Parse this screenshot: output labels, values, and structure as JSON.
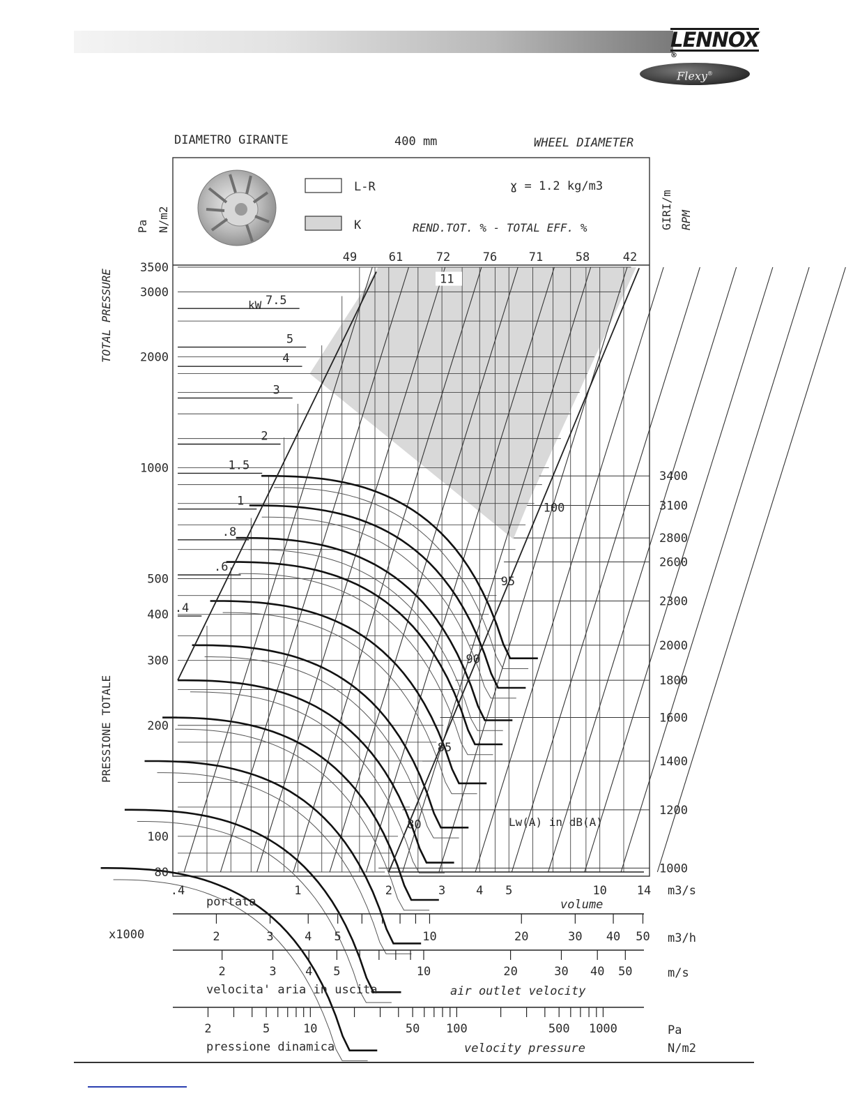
{
  "header": {
    "brand": "LENNOX",
    "brand_mark": "®",
    "product": "Flexy",
    "product_mark": "®"
  },
  "chart_data": {
    "type": "line",
    "chart_kind": "fan performance chart",
    "title_left": "DIAMETRO GIRANTE",
    "title_center": "400 mm",
    "title_right": "WHEEL DIAMETER",
    "legend": [
      {
        "label": "L-R",
        "fill": "#ffffff"
      },
      {
        "label": "K",
        "fill": "#d6d6d6"
      }
    ],
    "density_label": "ɣ = 1.2 kg/m3",
    "efficiency_label": "REND.TOT. % - TOTAL EFF. %",
    "efficiency_values": [
      "49",
      "61",
      "72",
      "76",
      "71",
      "58",
      "42"
    ],
    "y_unit_labels": [
      "Pa",
      "N/m2"
    ],
    "ylabel_en": "TOTAL PRESSURE",
    "ylabel_it": "PRESSIONE TOTALE",
    "y_scale": "log",
    "y_range": [
      80,
      3500
    ],
    "y_ticks": [
      {
        "label": "3500",
        "value": 3500
      },
      {
        "label": "3000",
        "value": 3000
      },
      {
        "label": "2000",
        "value": 2000
      },
      {
        "label": "1000",
        "value": 1000
      },
      {
        "label": "500",
        "value": 500
      },
      {
        "label": "400",
        "value": 400
      },
      {
        "label": "300",
        "value": 300
      },
      {
        "label": "200",
        "value": 200
      },
      {
        "label": "100",
        "value": 100
      },
      {
        "label": "80",
        "value": 80
      }
    ],
    "rpm_axis_labels": [
      "GIRI/m",
      "RPM"
    ],
    "rpm_ticks": [
      {
        "label": "3400",
        "pressure": 950
      },
      {
        "label": "3100",
        "pressure": 790
      },
      {
        "label": "2800",
        "pressure": 645
      },
      {
        "label": "2600",
        "pressure": 555
      },
      {
        "label": "2300",
        "pressure": 435
      },
      {
        "label": "2000",
        "pressure": 330
      },
      {
        "label": "1800",
        "pressure": 265
      },
      {
        "label": "1600",
        "pressure": 210
      },
      {
        "label": "1400",
        "pressure": 160
      },
      {
        "label": "1200",
        "pressure": 118
      },
      {
        "label": "1000",
        "pressure": 82
      }
    ],
    "power_label": "kW",
    "power_ticks": [
      {
        "label": "11",
        "volume": 2.95,
        "pressure": 3200
      },
      {
        "label": "7.5",
        "volume": 0.97,
        "pressure": 2800
      },
      {
        "label": "5",
        "volume": 1.02,
        "pressure": 2200
      },
      {
        "label": "4",
        "volume": 0.99,
        "pressure": 1950
      },
      {
        "label": "3",
        "volume": 0.92,
        "pressure": 1600
      },
      {
        "label": "2",
        "volume": 0.84,
        "pressure": 1200
      },
      {
        "label": "1.5",
        "volume": 0.73,
        "pressure": 1000
      },
      {
        "label": "1",
        "volume": 0.7,
        "pressure": 800
      },
      {
        "label": ".8",
        "volume": 0.66,
        "pressure": 660
      },
      {
        "label": ".6",
        "volume": 0.62,
        "pressure": 530
      },
      {
        "label": ".4",
        "volume": 0.46,
        "pressure": 410
      }
    ],
    "sound_label": "Lw(A)  in dB(A)",
    "sound_ticks": [
      {
        "label": "100",
        "volume": 6.5,
        "pressure": 760
      },
      {
        "label": "95",
        "volume": 4.7,
        "pressure": 480
      },
      {
        "label": "90",
        "volume": 3.6,
        "pressure": 295
      },
      {
        "label": "85",
        "volume": 2.9,
        "pressure": 170
      },
      {
        "label": "80",
        "volume": 2.3,
        "pressure": 105
      }
    ],
    "x_scale": "log",
    "x_range": [
      0.4,
      14
    ],
    "x_ticks": [
      {
        "label": ".4",
        "value": 0.4
      },
      {
        "label": "1",
        "value": 1
      },
      {
        "label": "2",
        "value": 2
      },
      {
        "label": "3",
        "value": 3
      },
      {
        "label": "4",
        "value": 4
      },
      {
        "label": "5",
        "value": 5
      },
      {
        "label": "10",
        "value": 10
      },
      {
        "label": "14",
        "value": 14
      }
    ],
    "xlabel_it": "portata",
    "xlabel_en": "volume",
    "xunit": "m3/s",
    "m3h_multiplier": "x1000",
    "m3h_unit": "m3/h",
    "m3h_ticks": [
      "2",
      "3",
      "4",
      "5",
      "10",
      "20",
      "30",
      "40",
      "50"
    ],
    "velocity_unit": "m/s",
    "velocity_ticks": [
      "2",
      "3",
      "4",
      "5",
      "10",
      "20",
      "30",
      "40",
      "50"
    ],
    "velocity_label_it": "velocita' aria in uscita",
    "velocity_label_en": "air outlet velocity",
    "dynamic_unit": [
      "Pa",
      "N/m2"
    ],
    "dynamic_ticks": [
      "2",
      "5",
      "10",
      "50",
      "100",
      "500",
      "1000"
    ],
    "dynamic_label_it": "pressione dinamica",
    "dynamic_label_en": "velocity pressure",
    "fan_curves": [
      {
        "rpm": 1000,
        "shutoff_pressure": 82
      },
      {
        "rpm": 1200,
        "shutoff_pressure": 118
      },
      {
        "rpm": 1400,
        "shutoff_pressure": 160
      },
      {
        "rpm": 1600,
        "shutoff_pressure": 210
      },
      {
        "rpm": 1800,
        "shutoff_pressure": 265
      },
      {
        "rpm": 2000,
        "shutoff_pressure": 330
      },
      {
        "rpm": 2300,
        "shutoff_pressure": 435
      },
      {
        "rpm": 2600,
        "shutoff_pressure": 555
      },
      {
        "rpm": 2800,
        "shutoff_pressure": 645
      },
      {
        "rpm": 3100,
        "shutoff_pressure": 790
      },
      {
        "rpm": 3400,
        "shutoff_pressure": 950
      }
    ]
  }
}
